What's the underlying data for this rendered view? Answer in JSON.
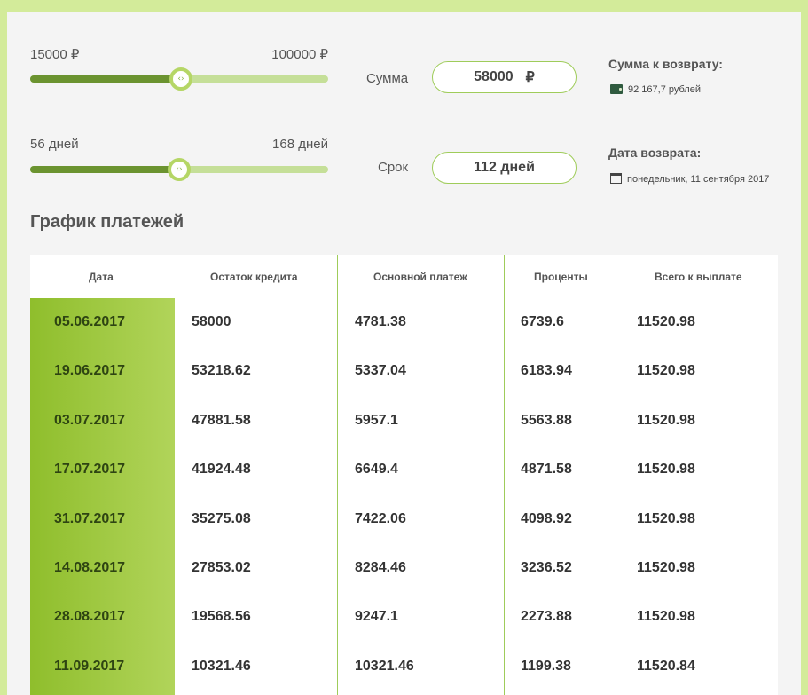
{
  "amount_slider": {
    "min_label": "15000 ₽",
    "max_label": "100000 ₽",
    "level_percent": 50.6
  },
  "term_slider": {
    "min_label": "56 дней",
    "max_label": "168 дней",
    "level_percent": 50
  },
  "amount_field": {
    "label": "Сумма",
    "value": "58000",
    "currency": "₽"
  },
  "term_field": {
    "label": "Срок",
    "value": "112 дней"
  },
  "repayment": {
    "title": "Сумма к возврату:",
    "value": "92 167,7 рублей"
  },
  "return_date": {
    "title": "Дата возврата:",
    "value": "понедельник, 11 сентября 2017"
  },
  "schedule": {
    "title": "График платежей",
    "columns": [
      "Дата",
      "Остаток кредита",
      "Основной платеж",
      "Проценты",
      "Всего к выплате"
    ],
    "rows": [
      [
        "05.06.2017",
        "58000",
        "4781.38",
        "6739.6",
        "11520.98"
      ],
      [
        "19.06.2017",
        "53218.62",
        "5337.04",
        "6183.94",
        "11520.98"
      ],
      [
        "03.07.2017",
        "47881.58",
        "5957.1",
        "5563.88",
        "11520.98"
      ],
      [
        "17.07.2017",
        "41924.48",
        "6649.4",
        "4871.58",
        "11520.98"
      ],
      [
        "31.07.2017",
        "35275.08",
        "7422.06",
        "4098.92",
        "11520.98"
      ],
      [
        "14.08.2017",
        "27853.02",
        "8284.46",
        "3236.52",
        "11520.98"
      ],
      [
        "28.08.2017",
        "19568.56",
        "9247.1",
        "2273.88",
        "11520.98"
      ],
      [
        "11.09.2017",
        "10321.46",
        "10321.46",
        "1199.38",
        "11520.84"
      ]
    ]
  },
  "icons": {
    "wallet": "wallet-icon",
    "calendar": "calendar-icon",
    "knob": "slider-handle-icon"
  },
  "colors": {
    "accent": "#9fcc5a",
    "dark_green": "#6b9330",
    "light_track": "#c5df98"
  }
}
